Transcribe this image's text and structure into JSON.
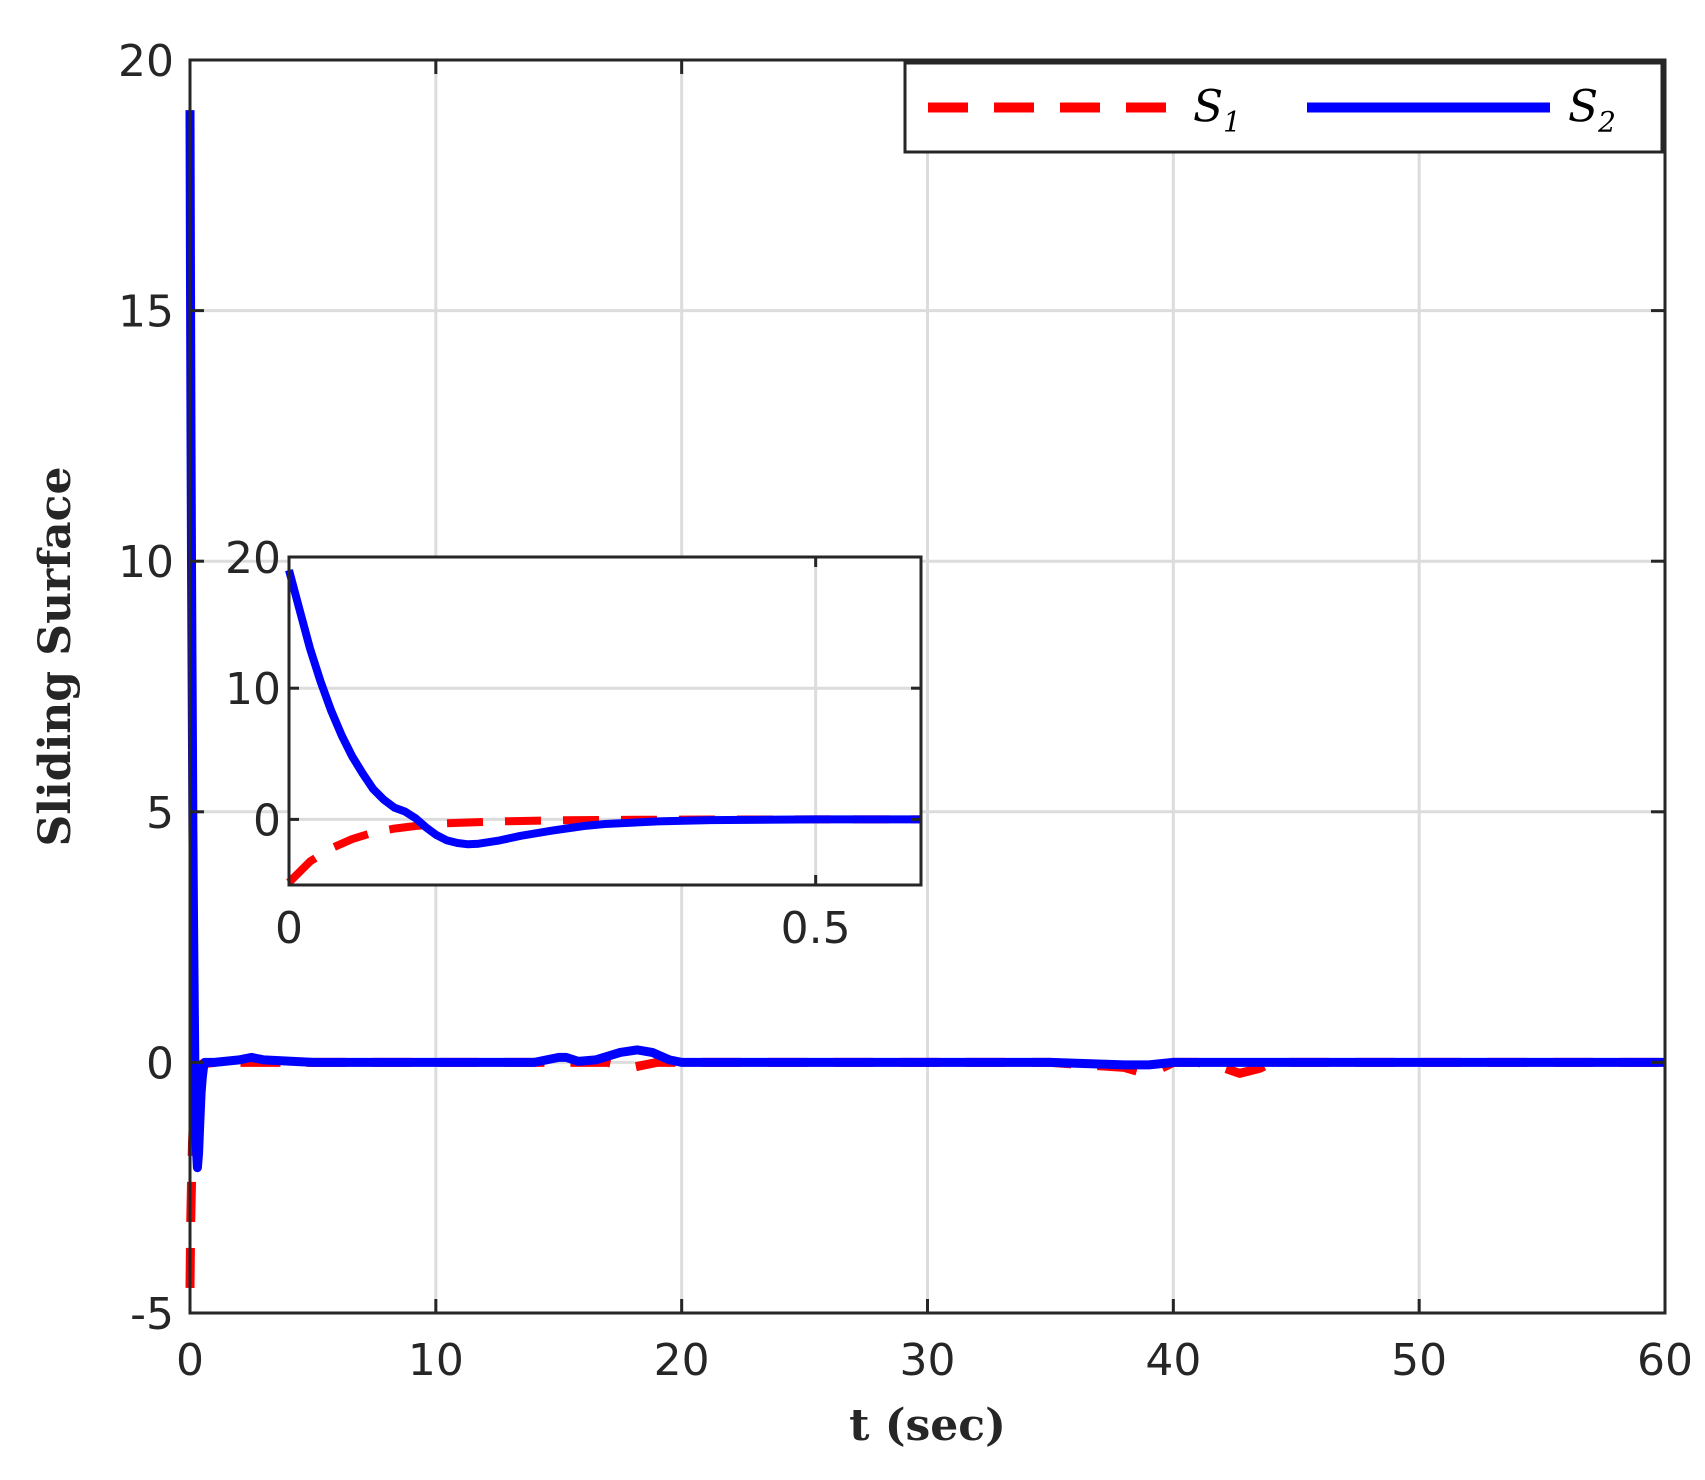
{
  "chart_data": {
    "type": "line",
    "xlabel": "t (sec)",
    "ylabel": "Sliding Surface",
    "xlim": [
      0,
      60
    ],
    "ylim": [
      -5,
      20
    ],
    "xticks": [
      "0",
      "10",
      "20",
      "30",
      "40",
      "50",
      "60"
    ],
    "yticks": [
      "-5",
      "0",
      "5",
      "10",
      "15",
      "20"
    ],
    "grid": true,
    "legend_position": "top-right",
    "legend": [
      {
        "symbol": "S",
        "subscript": "1"
      },
      {
        "symbol": "S",
        "subscript": "2"
      }
    ],
    "series": [
      {
        "name": "S1",
        "color": "#ff0000",
        "style": "dashed",
        "x": [
          0,
          0.03,
          0.06,
          0.1,
          0.15,
          0.2,
          0.25,
          0.3,
          0.4,
          0.5,
          1,
          2,
          5,
          10,
          15,
          17,
          17.5,
          18,
          18.5,
          19,
          19.5,
          20,
          25,
          30,
          35,
          38,
          38.7,
          39.5,
          40,
          41,
          42,
          42.7,
          43.5,
          44,
          46,
          50,
          55,
          60
        ],
        "y": [
          -4.5,
          -3.2,
          -2.4,
          -1.6,
          -1.0,
          -0.6,
          -0.35,
          -0.2,
          -0.08,
          -0.03,
          0,
          0,
          0,
          0,
          0,
          0,
          -0.05,
          -0.1,
          -0.05,
          0,
          0,
          0,
          0,
          0,
          0,
          -0.1,
          -0.2,
          -0.12,
          0,
          0,
          -0.1,
          -0.22,
          -0.12,
          0,
          0,
          0,
          0,
          0
        ]
      },
      {
        "name": "S2",
        "color": "#0000ff",
        "style": "solid",
        "x": [
          0,
          0.02,
          0.04,
          0.06,
          0.08,
          0.1,
          0.12,
          0.14,
          0.16,
          0.18,
          0.2,
          0.25,
          0.3,
          0.35,
          0.4,
          0.45,
          0.5,
          0.55,
          0.6,
          0.7,
          0.8,
          1,
          2,
          2.5,
          3,
          5,
          10,
          14,
          15,
          15.3,
          15.8,
          16.5,
          17.5,
          18.2,
          18.8,
          19.5,
          20,
          25,
          30,
          35,
          38,
          39,
          40,
          42,
          43,
          45,
          50,
          55,
          60
        ],
        "y": [
          19,
          15.5,
          12.5,
          10,
          8,
          6.2,
          4.6,
          3.2,
          2,
          0.9,
          -0.2,
          -1.6,
          -2.1,
          -1.8,
          -1.2,
          -0.6,
          -0.3,
          -0.1,
          0,
          0,
          0,
          0,
          0.05,
          0.1,
          0.05,
          0,
          0,
          0,
          0.1,
          0.1,
          0.02,
          0.05,
          0.2,
          0.25,
          0.2,
          0.05,
          0,
          0,
          0,
          0,
          -0.05,
          -0.05,
          0,
          0,
          0,
          0,
          0,
          0,
          0
        ]
      }
    ],
    "inset": {
      "xlim": [
        0,
        0.6
      ],
      "ylim": [
        -5,
        20
      ],
      "xticks": [
        "0",
        "0.5"
      ],
      "yticks": [
        "0",
        "10",
        "20"
      ],
      "series": [
        {
          "name": "S1",
          "color": "#ff0000",
          "style": "dashed",
          "x": [
            0,
            0.02,
            0.04,
            0.06,
            0.08,
            0.1,
            0.12,
            0.15,
            0.2,
            0.25,
            0.3,
            0.35,
            0.4,
            0.5,
            0.6
          ],
          "y": [
            -4.8,
            -3.2,
            -2.2,
            -1.5,
            -1.0,
            -0.7,
            -0.5,
            -0.3,
            -0.15,
            -0.08,
            -0.04,
            -0.02,
            -0.01,
            0,
            0
          ]
        },
        {
          "name": "S2",
          "color": "#0000ff",
          "style": "solid",
          "x": [
            0,
            0.01,
            0.02,
            0.03,
            0.04,
            0.05,
            0.06,
            0.07,
            0.08,
            0.09,
            0.1,
            0.11,
            0.12,
            0.13,
            0.14,
            0.15,
            0.16,
            0.17,
            0.18,
            0.2,
            0.22,
            0.25,
            0.28,
            0.3,
            0.35,
            0.4,
            0.5,
            0.6
          ],
          "y": [
            19,
            16,
            13,
            10.5,
            8.3,
            6.4,
            4.8,
            3.5,
            2.3,
            1.5,
            0.9,
            0.6,
            0.1,
            -0.6,
            -1.2,
            -1.6,
            -1.8,
            -1.9,
            -1.85,
            -1.6,
            -1.25,
            -0.85,
            -0.5,
            -0.35,
            -0.15,
            -0.05,
            0,
            0
          ]
        }
      ]
    }
  }
}
